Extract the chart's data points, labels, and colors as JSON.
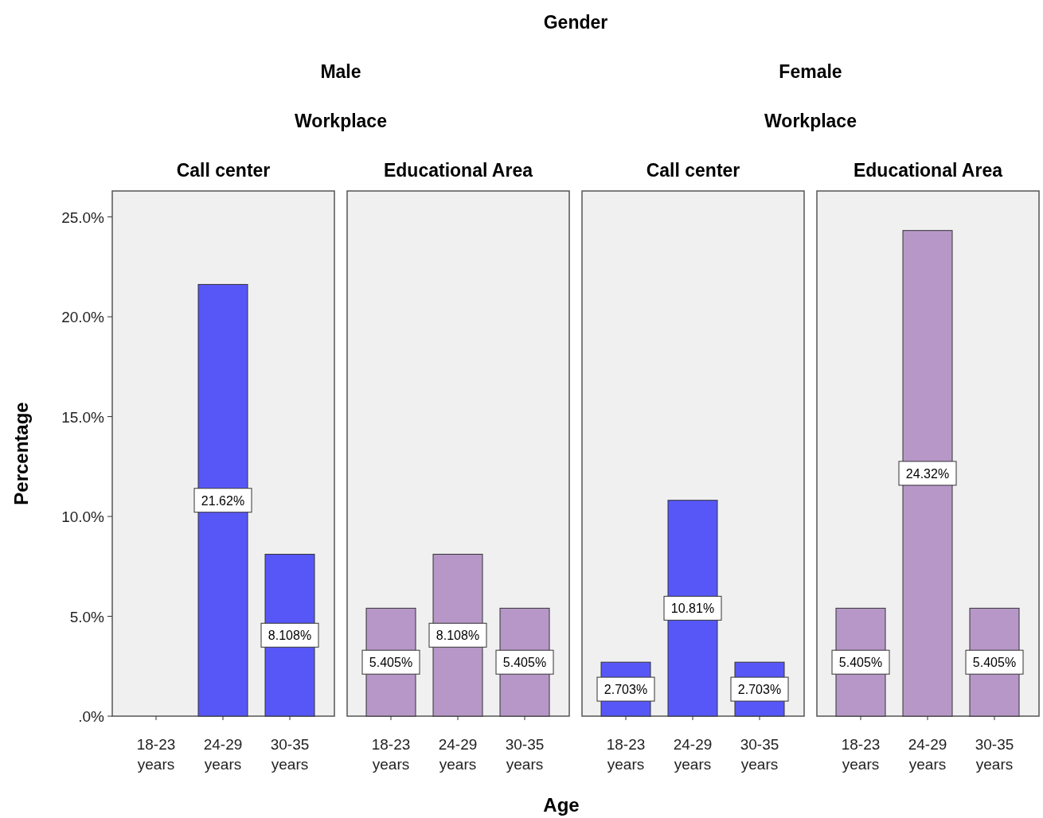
{
  "chart_data": [
    {
      "type": "bar",
      "title": "Call center",
      "annotations": [
        "Gender",
        "Male",
        "Workplace"
      ],
      "ylabel": "Percentage",
      "categories": [
        "18-23 years",
        "24-29 years",
        "30-35 years"
      ],
      "values": [
        0,
        21.62,
        8.108
      ],
      "value_labels": [
        null,
        "21.62%",
        "8.108%"
      ],
      "color": "#5757f8",
      "ylim": [
        0,
        26.3
      ],
      "yticks": [
        {
          "value": 0,
          "label": ".0%"
        },
        {
          "value": 5,
          "label": "5.0%"
        },
        {
          "value": 10,
          "label": "10.0%"
        },
        {
          "value": 15,
          "label": "15.0%"
        },
        {
          "value": 20,
          "label": "20.0%"
        },
        {
          "value": 25,
          "label": "25.0%"
        }
      ]
    },
    {
      "type": "bar",
      "title": "Educational Area",
      "xlabel": "Age",
      "categories": [
        "18-23 years",
        "24-29 years",
        "30-35 years"
      ],
      "values": [
        5.405,
        8.108,
        5.405
      ],
      "value_labels": [
        "5.405%",
        "8.108%",
        "5.405%"
      ],
      "color": "#b797c8",
      "ylim": [
        0,
        26.3
      ],
      "tick_labels": "x"
    },
    {
      "type": "bar",
      "title": "Call center",
      "annotations": [
        "Female",
        "Workplace"
      ],
      "categories": [
        "18-23 years",
        "24-29 years",
        "30-35 years"
      ],
      "values": [
        2.703,
        10.81,
        2.703
      ],
      "value_labels": [
        "2.703%",
        "10.81%",
        "2.703%"
      ],
      "color": "#5757f8",
      "ylim": [
        0,
        26.3
      ],
      "tick_labels": "x"
    },
    {
      "type": "bar",
      "title": "Educational Area",
      "categories": [
        "18-23 years",
        "24-29 years",
        "30-35 years"
      ],
      "values": [
        5.405,
        24.32,
        5.405
      ],
      "value_labels": [
        "5.405%",
        "24.32%",
        "5.405%"
      ],
      "color": "#b797c8",
      "ylim": [
        0,
        26.3
      ],
      "tick_labels": "x"
    }
  ]
}
